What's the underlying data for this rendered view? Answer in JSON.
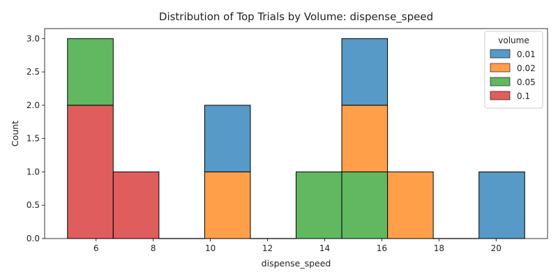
{
  "chart_data": {
    "type": "bar",
    "title": "Distribution of Top Trials by Volume: dispense_speed",
    "xlabel": "dispense_speed",
    "ylabel": "Count",
    "xlim": [
      4.2,
      21.8
    ],
    "ylim": [
      0,
      3.15
    ],
    "x_ticks": [
      6,
      8,
      10,
      12,
      14,
      16,
      18,
      20
    ],
    "y_ticks": [
      0.0,
      0.5,
      1.0,
      1.5,
      2.0,
      2.5,
      3.0
    ],
    "y_tick_labels": [
      "0.0",
      "0.5",
      "1.0",
      "1.5",
      "2.0",
      "2.5",
      "3.0"
    ],
    "bin_edges": [
      5.0,
      6.6,
      8.2,
      9.8,
      11.4,
      13.0,
      14.6,
      16.2,
      17.8,
      19.4,
      21.0
    ],
    "stacking": "stacked",
    "grid": false,
    "legend": {
      "title": "volume",
      "placement": "top-right"
    },
    "series": [
      {
        "name": "0.1",
        "color": "#d62728",
        "values": [
          2,
          1,
          0,
          0,
          0,
          0,
          0,
          0,
          0,
          0
        ]
      },
      {
        "name": "0.05",
        "color": "#2ca02c",
        "values": [
          1,
          0,
          0,
          0,
          0,
          1,
          1,
          0,
          0,
          0
        ]
      },
      {
        "name": "0.02",
        "color": "#ff7f0e",
        "values": [
          0,
          0,
          0,
          1,
          0,
          0,
          1,
          1,
          0,
          0
        ]
      },
      {
        "name": "0.01",
        "color": "#1f77b4",
        "values": [
          0,
          0,
          0,
          1,
          0,
          0,
          1,
          0,
          0,
          1
        ]
      }
    ],
    "legend_order": [
      "0.01",
      "0.02",
      "0.05",
      "0.1"
    ]
  }
}
